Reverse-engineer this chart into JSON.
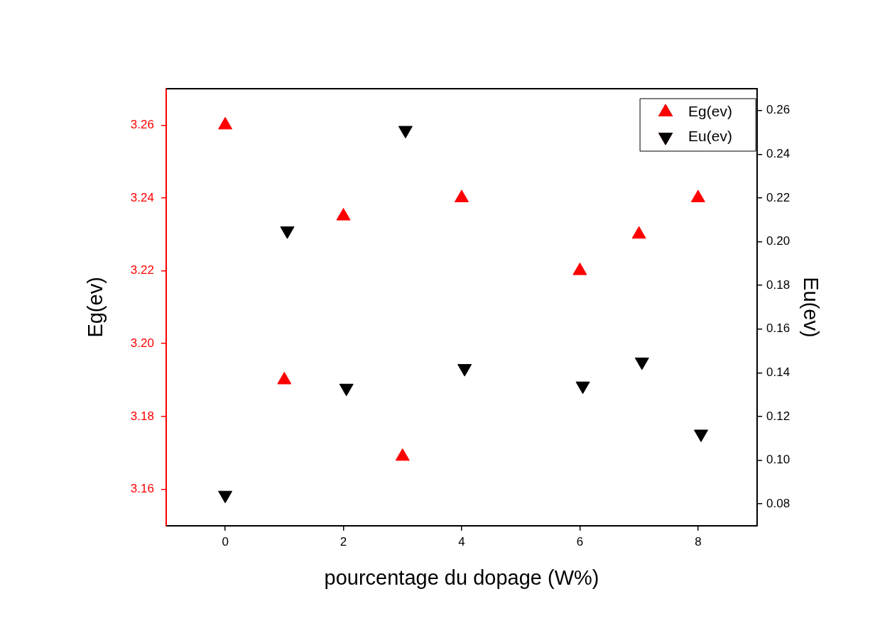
{
  "chart_data": {
    "type": "scatter",
    "xlabel": "pourcentage du dopage (W%)",
    "ylabel": "Eg(ev)",
    "y2label": "Eu(ev)",
    "xlim": [
      -1,
      9
    ],
    "xticks": [
      0,
      2,
      4,
      6,
      8
    ],
    "ylim": [
      3.15,
      3.27
    ],
    "yticks": [
      3.16,
      3.18,
      {
        "value": 3.2,
        "label": "3.20"
      },
      3.22,
      3.24,
      3.26
    ],
    "y2lim": [
      0.07,
      0.27
    ],
    "y2ticks": [
      0.08,
      {
        "value": 0.1,
        "label": "0.10"
      },
      0.12,
      0.14,
      0.16,
      0.18,
      {
        "value": 0.2,
        "label": "0.20"
      },
      0.22,
      0.24,
      0.26
    ],
    "grid": false,
    "legend": "top right",
    "series": [
      {
        "name": "Eg(ev)",
        "color": "#ff0000",
        "marker": "triangle",
        "x": [
          0,
          1,
          2,
          3,
          4,
          6,
          7,
          8
        ],
        "values": [
          3.26,
          3.19,
          3.235,
          3.169,
          3.24,
          3.22,
          3.23,
          3.24
        ]
      },
      {
        "name": "Eu(ev)",
        "color": "#000000",
        "marker": "triangle-down",
        "axis": "y2",
        "x": [
          0,
          1.05,
          2.05,
          3.05,
          4.05,
          6.05,
          7.05,
          8.05
        ],
        "values": [
          0.084,
          0.205,
          0.133,
          0.251,
          0.142,
          0.134,
          0.145,
          0.112
        ]
      }
    ]
  }
}
